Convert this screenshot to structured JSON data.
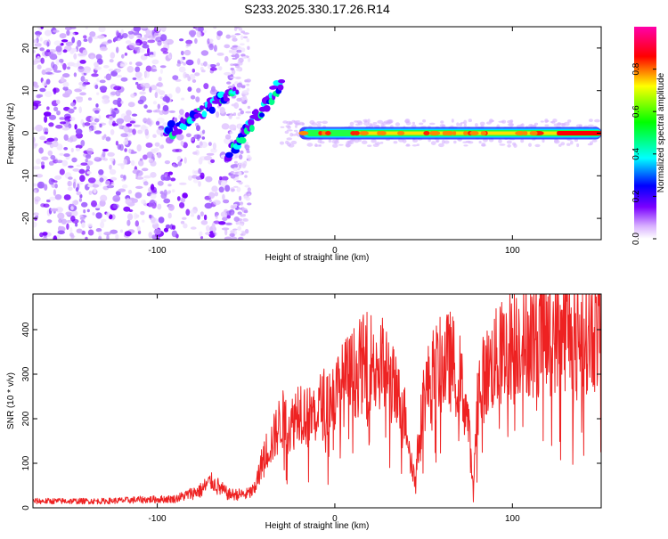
{
  "title": "S233.2025.330.17.26.R14",
  "chart_data": [
    {
      "type": "heatmap",
      "xlabel": "Height of straight line (km)",
      "ylabel": "Frequency (Hz)",
      "xlim": [
        -170,
        150
      ],
      "ylim": [
        -25,
        25
      ],
      "xticks": [
        -100,
        0,
        100
      ],
      "yticks": [
        -20,
        -10,
        0,
        10,
        20
      ],
      "grid": false,
      "colorbar": {
        "label": "Normalized spectral amplitude",
        "ticks": [
          "0.0",
          "0.2",
          "0.4",
          "0.6",
          "0.8"
        ],
        "range": [
          0,
          1
        ],
        "colormap": [
          "#ffffff",
          "#7a00ff",
          "#0000ff",
          "#00ffff",
          "#00ff00",
          "#ffff00",
          "#ff0000",
          "#ff00aa"
        ]
      },
      "features": {
        "scattered_noise_region_km": [
          -170,
          -60
        ],
        "diagonal_echo_segments": [
          {
            "x": [
              -95,
              -55
            ],
            "y": [
              0,
              10
            ]
          },
          {
            "x": [
              -60,
              -30
            ],
            "y": [
              -5,
              12
            ]
          }
        ],
        "main_trace": {
          "x": [
            -20,
            150
          ],
          "y": [
            0,
            0
          ],
          "peak_amplitude": 0.95
        }
      }
    },
    {
      "type": "line",
      "xlabel": "Height of straight line (km)",
      "ylabel": "SNR (10 * v/v)",
      "xlim": [
        -170,
        150
      ],
      "ylim": [
        0,
        480
      ],
      "xticks": [
        -100,
        0,
        100
      ],
      "yticks": [
        0,
        100,
        200,
        300,
        400
      ],
      "grid": false,
      "series": [
        {
          "color": "#ee2222",
          "x": [
            -170,
            -150,
            -130,
            -110,
            -90,
            -75,
            -70,
            -60,
            -50,
            -45,
            -40,
            -35,
            -30,
            -25,
            -20,
            -15,
            -10,
            -5,
            0,
            5,
            10,
            15,
            20,
            25,
            30,
            35,
            40,
            45,
            50,
            55,
            60,
            65,
            70,
            75,
            78,
            80,
            85,
            90,
            95,
            100,
            105,
            110,
            115,
            120,
            125,
            130,
            135,
            140,
            145,
            150
          ],
          "values": [
            15,
            15,
            15,
            18,
            20,
            40,
            60,
            30,
            30,
            40,
            120,
            150,
            200,
            180,
            230,
            200,
            220,
            240,
            250,
            280,
            300,
            320,
            330,
            330,
            300,
            250,
            200,
            60,
            250,
            300,
            320,
            330,
            300,
            200,
            30,
            260,
            300,
            330,
            350,
            370,
            380,
            380,
            390,
            390,
            395,
            395,
            400,
            395,
            390,
            400
          ]
        }
      ]
    }
  ]
}
